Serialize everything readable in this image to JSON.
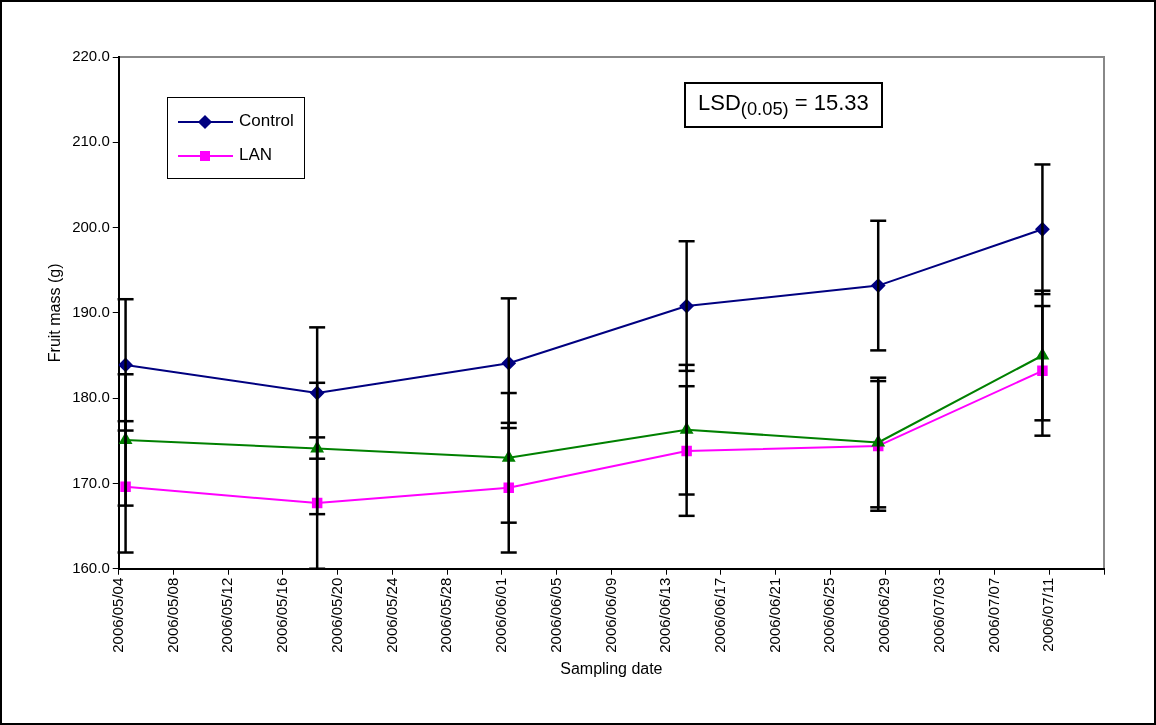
{
  "chart_data": {
    "type": "line",
    "xlabel": "Sampling date",
    "ylabel": "Fruit mass (g)",
    "x": [
      "2006-05-04T12:00",
      "2006-05-18T12:00",
      "2006-06-01T12:00",
      "2006-06-14T12:00",
      "2006-06-28T12:00",
      "2006-07-10T12:00"
    ],
    "series": [
      {
        "name": "Control",
        "color": "#000080",
        "marker": "diamond",
        "values": [
          183.9,
          180.6,
          184.1,
          190.8,
          193.2,
          199.8
        ],
        "errors": [
          7.7,
          7.7,
          7.6,
          7.6,
          7.6,
          7.6
        ]
      },
      {
        "name": "LAN",
        "color": "#ff00ff",
        "marker": "square",
        "values": [
          169.6,
          167.7,
          169.5,
          173.8,
          174.4,
          183.2
        ],
        "errors": [
          7.7,
          7.7,
          7.6,
          7.6,
          7.6,
          7.6
        ]
      },
      {
        "color": "#008000",
        "marker": "triangle",
        "values": [
          175.1,
          174.1,
          173.0,
          176.3,
          174.8,
          185.0
        ],
        "errors": [
          7.7,
          7.7,
          7.6,
          7.6,
          7.6,
          7.6
        ]
      }
    ],
    "xlim": [
      "2006-05-04",
      "2006-07-15"
    ],
    "xticks": [
      {
        "value": "2006-05-04",
        "label": "2006/05/04"
      },
      {
        "value": "2006-05-08",
        "label": "2006/05/08"
      },
      {
        "value": "2006-05-12",
        "label": "2006/05/12"
      },
      {
        "value": "2006-05-16",
        "label": "2006/05/16"
      },
      {
        "value": "2006-05-20",
        "label": "2006/05/20"
      },
      {
        "value": "2006-05-24",
        "label": "2006/05/24"
      },
      {
        "value": "2006-05-28",
        "label": "2006/05/28"
      },
      {
        "value": "2006-06-01",
        "label": "2006/06/01"
      },
      {
        "value": "2006-06-05",
        "label": "2006/06/05"
      },
      {
        "value": "2006-06-09",
        "label": "2006/06/09"
      },
      {
        "value": "2006-06-13",
        "label": "2006/06/13"
      },
      {
        "value": "2006-06-17",
        "label": "2006/06/17"
      },
      {
        "value": "2006-06-21",
        "label": "2006/06/21"
      },
      {
        "value": "2006-06-25",
        "label": "2006/06/25"
      },
      {
        "value": "2006-06-29",
        "label": "2006/06/29"
      },
      {
        "value": "2006-07-03",
        "label": "2006/07/03"
      },
      {
        "value": "2006-07-07",
        "label": "2006/07/07"
      },
      {
        "value": "2006-07-11",
        "label": "2006/07/11"
      },
      {
        "value": "2006-07-15",
        "label": null
      }
    ],
    "ylim": [
      160,
      220
    ],
    "yticks": [
      {
        "value": 160,
        "label": "160.0"
      },
      {
        "value": 170,
        "label": "170.0"
      },
      {
        "value": 180,
        "label": "180.0"
      },
      {
        "value": 190,
        "label": "190.0"
      },
      {
        "value": 200,
        "label": "200.0"
      },
      {
        "value": 210,
        "label": "210.0"
      },
      {
        "value": 220,
        "label": "220.0"
      }
    ],
    "legend": "top left",
    "line_style": "solid",
    "annotations": [
      "LSD$_{(0.05)}$ = 15.33"
    ]
  }
}
